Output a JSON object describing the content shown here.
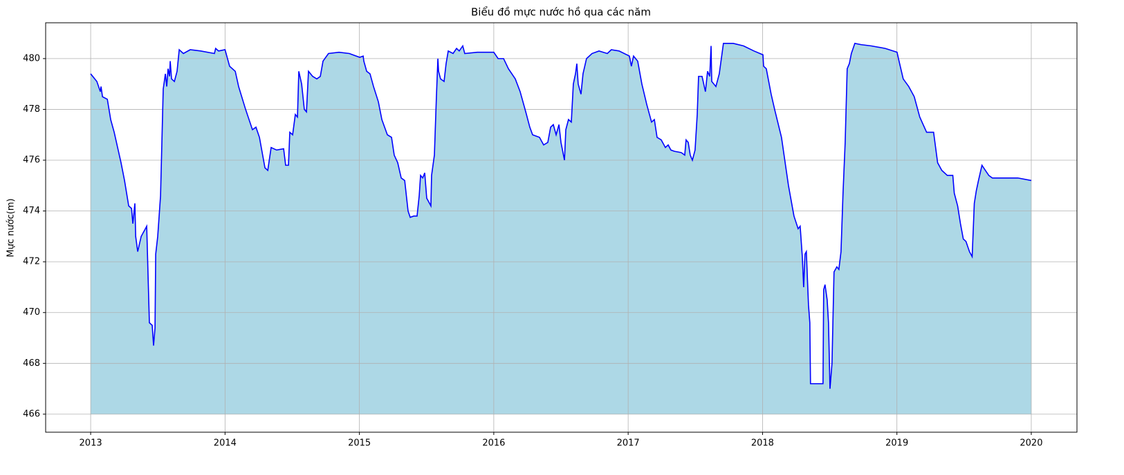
{
  "chart_data": {
    "type": "area",
    "title": "Biểu đồ mực nước hồ qua các năm",
    "y_label": "Mực nước(m)",
    "x": [
      2013.0,
      2013.046,
      2013.072,
      2013.077,
      2013.088,
      2013.124,
      2013.149,
      2013.175,
      2013.226,
      2013.252,
      2013.283,
      2013.304,
      2013.314,
      2013.329,
      2013.335,
      2013.35,
      2013.376,
      2013.407,
      2013.417,
      2013.437,
      2013.458,
      2013.468,
      2013.479,
      2013.484,
      2013.499,
      2013.52,
      2013.54,
      2013.556,
      2013.566,
      2013.576,
      2013.587,
      2013.592,
      2013.602,
      2013.623,
      2013.643,
      2013.659,
      2013.69,
      2013.741,
      2013.818,
      2013.921,
      2013.93,
      2013.952,
      2014.0,
      2014.034,
      2014.076,
      2014.101,
      2014.153,
      2014.204,
      2014.23,
      2014.256,
      2014.297,
      2014.318,
      2014.343,
      2014.384,
      2014.436,
      2014.451,
      2014.472,
      2014.482,
      2014.503,
      2014.523,
      2014.539,
      2014.549,
      2014.57,
      2014.59,
      2014.606,
      2014.621,
      2014.652,
      2014.683,
      2014.709,
      2014.729,
      2014.77,
      2014.848,
      2014.925,
      2015.002,
      2015.028,
      2015.033,
      2015.054,
      2015.079,
      2015.105,
      2015.141,
      2015.167,
      2015.208,
      2015.239,
      2015.259,
      2015.285,
      2015.311,
      2015.337,
      2015.362,
      2015.378,
      2015.404,
      2015.429,
      2015.445,
      2015.455,
      2015.471,
      2015.486,
      2015.501,
      2015.522,
      2015.532,
      2015.537,
      2015.558,
      2015.573,
      2015.584,
      2015.589,
      2015.604,
      2015.63,
      2015.645,
      2015.661,
      2015.697,
      2015.723,
      2015.743,
      2015.769,
      2015.784,
      2015.877,
      2016.0,
      2016.032,
      2016.073,
      2016.109,
      2016.16,
      2016.196,
      2016.238,
      2016.268,
      2016.289,
      2016.34,
      2016.371,
      2016.402,
      2016.423,
      2016.443,
      2016.464,
      2016.485,
      2016.5,
      2016.526,
      2016.536,
      2016.556,
      2016.577,
      2016.592,
      2016.608,
      2016.618,
      2016.628,
      2016.649,
      2016.664,
      2016.69,
      2016.731,
      2016.783,
      2016.845,
      2016.875,
      2016.932,
      2017.009,
      2017.024,
      2017.04,
      2017.071,
      2017.102,
      2017.138,
      2017.174,
      2017.195,
      2017.215,
      2017.246,
      2017.277,
      2017.298,
      2017.318,
      2017.344,
      2017.395,
      2017.421,
      2017.431,
      2017.447,
      2017.462,
      2017.478,
      2017.498,
      2017.514,
      2017.524,
      2017.55,
      2017.575,
      2017.591,
      2017.607,
      2017.617,
      2017.622,
      2017.653,
      2017.678,
      2017.709,
      2017.782,
      2017.859,
      2017.936,
      2018.003,
      2018.008,
      2018.028,
      2018.064,
      2018.09,
      2018.141,
      2018.193,
      2018.234,
      2018.265,
      2018.28,
      2018.296,
      2018.306,
      2018.316,
      2018.326,
      2018.342,
      2018.352,
      2018.357,
      2018.45,
      2018.455,
      2018.465,
      2018.481,
      2018.491,
      2018.502,
      2018.517,
      2018.532,
      2018.553,
      2018.568,
      2018.584,
      2018.599,
      2018.615,
      2018.63,
      2018.646,
      2018.661,
      2018.687,
      2018.733,
      2018.81,
      2018.913,
      2019.001,
      2019.016,
      2019.047,
      2019.088,
      2019.129,
      2019.17,
      2019.221,
      2019.273,
      2019.303,
      2019.334,
      2019.375,
      2019.416,
      2019.427,
      2019.452,
      2019.473,
      2019.494,
      2019.514,
      2019.54,
      2019.56,
      2019.576,
      2019.591,
      2019.607,
      2019.633,
      2019.658,
      2019.684,
      2019.71,
      2019.771,
      2019.823,
      2019.9,
      2020.0
    ],
    "values": [
      479.4,
      479.1,
      478.7,
      478.9,
      478.5,
      478.4,
      477.6,
      477.1,
      475.9,
      475.2,
      474.2,
      474.1,
      473.5,
      474.3,
      473.0,
      472.4,
      473.0,
      473.3,
      473.4,
      469.6,
      469.5,
      468.7,
      469.4,
      472.3,
      473.0,
      474.6,
      478.8,
      479.4,
      478.9,
      479.6,
      479.3,
      479.9,
      479.2,
      479.1,
      479.5,
      480.35,
      480.2,
      480.35,
      480.3,
      480.2,
      480.4,
      480.3,
      480.35,
      479.7,
      479.5,
      478.9,
      478.0,
      477.2,
      477.3,
      476.9,
      475.7,
      475.6,
      476.5,
      476.4,
      476.45,
      475.8,
      475.8,
      477.1,
      477.0,
      477.8,
      477.7,
      479.5,
      479.0,
      478.0,
      477.9,
      479.5,
      479.3,
      479.2,
      479.3,
      479.9,
      480.2,
      480.25,
      480.2,
      480.05,
      480.1,
      479.9,
      479.5,
      479.4,
      478.9,
      478.3,
      477.6,
      477.0,
      476.9,
      476.2,
      475.9,
      475.3,
      475.2,
      474.0,
      473.75,
      473.8,
      473.8,
      474.6,
      475.4,
      475.3,
      475.5,
      474.5,
      474.3,
      474.2,
      475.4,
      476.2,
      478.5,
      480.0,
      479.5,
      479.2,
      479.1,
      479.8,
      480.3,
      480.2,
      480.4,
      480.3,
      480.5,
      480.2,
      480.25,
      480.25,
      480.0,
      480.0,
      479.6,
      479.2,
      478.7,
      477.9,
      477.3,
      477.0,
      476.9,
      476.6,
      476.7,
      477.3,
      477.4,
      477.0,
      477.4,
      476.7,
      476.0,
      477.2,
      477.6,
      477.5,
      479.0,
      479.4,
      479.8,
      479.0,
      478.6,
      479.4,
      480.0,
      480.2,
      480.3,
      480.2,
      480.35,
      480.3,
      480.1,
      479.7,
      480.1,
      479.9,
      479.0,
      478.2,
      477.5,
      477.6,
      476.9,
      476.8,
      476.5,
      476.6,
      476.4,
      476.35,
      476.3,
      476.2,
      476.8,
      476.7,
      476.2,
      476.0,
      476.4,
      477.8,
      479.3,
      479.3,
      478.7,
      479.5,
      479.3,
      480.5,
      479.1,
      478.9,
      479.4,
      480.6,
      480.6,
      480.5,
      480.3,
      480.15,
      479.7,
      479.6,
      478.6,
      478.0,
      476.9,
      475.0,
      473.8,
      473.3,
      473.4,
      472.2,
      471.0,
      472.3,
      472.4,
      470.3,
      469.6,
      467.2,
      467.2,
      470.9,
      471.1,
      470.5,
      469.6,
      467.0,
      468.0,
      471.6,
      471.8,
      471.7,
      472.4,
      474.7,
      476.7,
      479.6,
      479.8,
      480.2,
      480.6,
      480.55,
      480.5,
      480.4,
      480.25,
      479.9,
      479.2,
      478.9,
      478.5,
      477.7,
      477.1,
      477.1,
      475.9,
      475.6,
      475.4,
      475.4,
      474.7,
      474.2,
      473.5,
      472.9,
      472.8,
      472.4,
      472.2,
      474.3,
      474.8,
      475.2,
      475.8,
      475.6,
      475.4,
      475.3,
      475.3,
      475.3,
      475.3,
      475.2
    ],
    "color": "blue",
    "fill_color": "lightblue",
    "fill_to": 466,
    "xlim": [
      2012.665,
      2020.34
    ],
    "xticks": [
      2013,
      2014,
      2015,
      2016,
      2017,
      2018,
      2019,
      2020
    ],
    "ylim": [
      465.29,
      481.41
    ],
    "yticks": [
      466,
      468,
      470,
      472,
      474,
      476,
      478,
      480
    ],
    "grid": true
  }
}
